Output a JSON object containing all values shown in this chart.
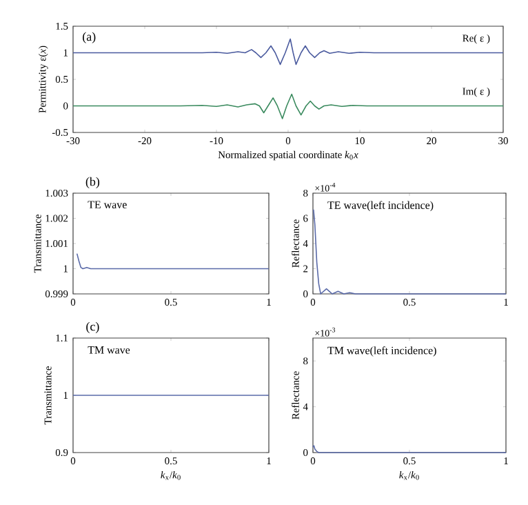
{
  "chart_data": [
    {
      "type": "line",
      "title": "(a)",
      "xlabel": "Normalized spatial coordinate *k*$_{0}$*x*",
      "ylabel": "Permittivity ε(*x*)",
      "xlim": [
        -30,
        30
      ],
      "ylim": [
        -0.5,
        1.5
      ],
      "xticks": [
        -30,
        -20,
        -10,
        0,
        10,
        20,
        30
      ],
      "yticks": [
        -0.5,
        0,
        0.5,
        1,
        1.5
      ],
      "series": [
        {
          "name": "Re( ε )",
          "color": "#4a5a9e",
          "x": [
            -30,
            -25,
            -20,
            -15,
            -12,
            -10,
            -8.5,
            -7,
            -6,
            -5.1,
            -4.5,
            -3.8,
            -3.1,
            -2.4,
            -1.8,
            -1.1,
            -0.4,
            0.3,
            0.7,
            1.1,
            1.8,
            2.4,
            3.0,
            3.7,
            4.4,
            5.0,
            5.8,
            7,
            8.5,
            10,
            12,
            15,
            20,
            25,
            30
          ],
          "values": [
            1,
            1,
            1,
            1,
            1.0,
            1.01,
            0.99,
            1.02,
            1.0,
            1.06,
            1.0,
            0.91,
            1.0,
            1.13,
            1.0,
            0.78,
            1.0,
            1.26,
            1.0,
            0.78,
            1.0,
            1.13,
            1.0,
            0.91,
            1.0,
            1.04,
            0.99,
            1.02,
            0.99,
            1.01,
            1.0,
            1,
            1,
            1,
            1
          ]
        },
        {
          "name": "Im( ε )",
          "color": "#3a8a5e",
          "x": [
            -30,
            -20,
            -15,
            -12,
            -10,
            -8.5,
            -7,
            -5.8,
            -4.6,
            -4,
            -3.4,
            -2.8,
            -2.1,
            -1.5,
            -0.8,
            -0.2,
            0.5,
            1.1,
            1.8,
            2.5,
            3.1,
            3.7,
            4.3,
            5,
            6,
            7.5,
            9,
            11,
            13,
            15,
            20,
            30
          ],
          "values": [
            0,
            0,
            0,
            0.01,
            -0.01,
            0.02,
            -0.02,
            0.02,
            0.04,
            0,
            -0.13,
            0,
            0.15,
            0,
            -0.24,
            0,
            0.22,
            0,
            -0.17,
            0,
            0.09,
            0,
            -0.06,
            0,
            0.02,
            -0.01,
            0.01,
            0,
            0,
            0,
            0,
            0
          ]
        }
      ]
    },
    {
      "type": "line",
      "title": "(b)",
      "ylabel": "Transmittance",
      "xlim": [
        0,
        1
      ],
      "ylim": [
        0.999,
        1.003
      ],
      "xticks": [
        0,
        0.5,
        1
      ],
      "yticks": [
        0.999,
        1,
        1.001,
        1.002,
        1.003
      ],
      "annotations": [
        "TE wave"
      ],
      "series": [
        {
          "color": "#5a6aa8",
          "x": [
            0.02,
            0.03,
            0.04,
            0.05,
            0.07,
            0.09,
            0.12,
            0.2,
            0.5,
            1
          ],
          "values": [
            1.0006,
            1.0003,
            1.00005,
            1.0,
            1.00005,
            1.0,
            1.0,
            1.0,
            1.0,
            1.0
          ]
        }
      ]
    },
    {
      "type": "line",
      "ylabel": "Reflectance",
      "xlim": [
        0,
        1
      ],
      "ylim": [
        0,
        8
      ],
      "xticks": [
        0,
        0.5,
        1
      ],
      "yticks": [
        0,
        2,
        4,
        6,
        8
      ],
      "annotations": [
        "TE wave(left incidence)",
        "×10$^{-4}$"
      ],
      "series": [
        {
          "color": "#5a6aa8",
          "x": [
            0.003,
            0.01,
            0.02,
            0.03,
            0.04,
            0.055,
            0.07,
            0.085,
            0.1,
            0.13,
            0.16,
            0.19,
            0.22,
            0.3,
            0.5,
            1
          ],
          "values": [
            6.7,
            5.5,
            2.5,
            0.8,
            0.0,
            0.2,
            0.4,
            0.2,
            0.0,
            0.2,
            0.0,
            0.1,
            0.0,
            0,
            0,
            0
          ]
        }
      ]
    },
    {
      "type": "line",
      "title": "(c)",
      "xlabel": "*k*$_{x}$/*k*$_{0}$",
      "ylabel": "Transmittance",
      "xlim": [
        0,
        1
      ],
      "ylim": [
        0.9,
        1.1
      ],
      "xticks": [
        0,
        0.5,
        1
      ],
      "yticks": [
        0.9,
        1,
        1.1
      ],
      "annotations": [
        "TM wave"
      ],
      "series": [
        {
          "color": "#5a6aa8",
          "x": [
            0,
            1
          ],
          "values": [
            1,
            1
          ]
        }
      ]
    },
    {
      "type": "line",
      "xlabel": "*k*$_{x}$/*k*$_{0}$",
      "ylabel": "Reflectance",
      "xlim": [
        0,
        1
      ],
      "ylim": [
        0,
        10
      ],
      "xticks": [
        0,
        0.5,
        1
      ],
      "yticks": [
        0,
        4,
        8
      ],
      "annotations": [
        "TM wave(left incidence)",
        "×10$^{-3}$"
      ],
      "series": [
        {
          "color": "#5a6aa8",
          "x": [
            0,
            0.005,
            0.01,
            0.02,
            0.03,
            1
          ],
          "values": [
            0.5,
            0.6,
            0.3,
            0.1,
            0,
            0
          ]
        }
      ]
    }
  ]
}
